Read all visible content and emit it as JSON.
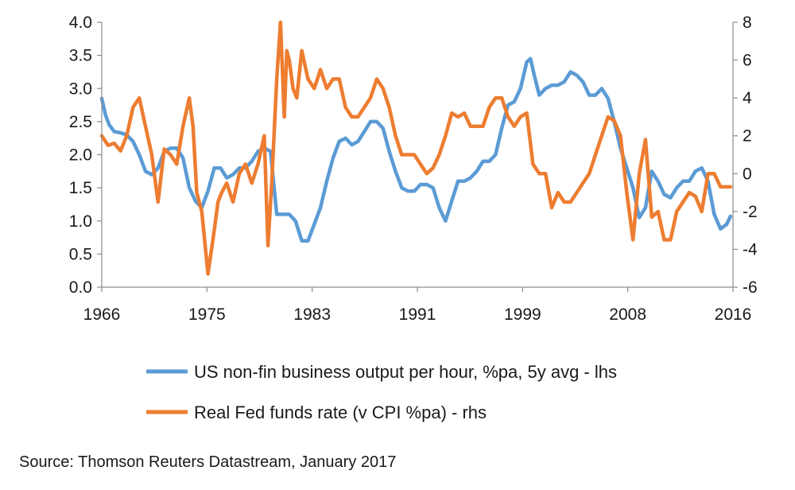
{
  "chart_data": {
    "type": "line",
    "title": "",
    "x_ticks": [
      "1966",
      "1975",
      "1983",
      "1991",
      "1999",
      "2008",
      "2016"
    ],
    "xlim": [
      1966,
      2016.5
    ],
    "y_left": {
      "lim": [
        0,
        4
      ],
      "ticks": [
        "0.0",
        "0.5",
        "1.0",
        "1.5",
        "2.0",
        "2.5",
        "3.0",
        "3.5",
        "4.0"
      ]
    },
    "y_right": {
      "lim": [
        -6,
        8
      ],
      "ticks": [
        "-6",
        "-4",
        "-2",
        "0",
        "2",
        "4",
        "6",
        "8"
      ]
    },
    "grid": false,
    "legend_position": "bottom",
    "series": [
      {
        "name": "US non-fin business output per hour, %pa, 5y avg - lhs",
        "axis": "left",
        "color": "#5b9bd5",
        "x": [
          1966.0,
          1966.3,
          1966.6,
          1967.0,
          1967.5,
          1968.0,
          1968.5,
          1969.0,
          1969.5,
          1970.0,
          1970.5,
          1971.0,
          1971.5,
          1972.0,
          1972.5,
          1973.0,
          1973.5,
          1974.0,
          1974.5,
          1975.0,
          1975.5,
          1976.0,
          1976.5,
          1977.0,
          1977.5,
          1978.0,
          1978.5,
          1979.0,
          1979.5,
          1980.0,
          1980.5,
          1981.0,
          1981.5,
          1982.0,
          1982.5,
          1983.0,
          1983.5,
          1984.0,
          1984.5,
          1985.0,
          1985.5,
          1986.0,
          1986.5,
          1987.0,
          1987.5,
          1988.0,
          1988.5,
          1989.0,
          1989.5,
          1990.0,
          1990.5,
          1991.0,
          1991.5,
          1992.0,
          1992.5,
          1993.0,
          1993.5,
          1994.0,
          1994.5,
          1995.0,
          1995.5,
          1996.0,
          1996.5,
          1997.0,
          1997.5,
          1998.0,
          1998.5,
          1999.0,
          1999.5,
          2000.0,
          2000.3,
          2000.6,
          2001.0,
          2001.5,
          2002.0,
          2002.5,
          2003.0,
          2003.5,
          2004.0,
          2004.5,
          2005.0,
          2005.5,
          2006.0,
          2006.5,
          2007.0,
          2007.5,
          2008.0,
          2008.5,
          2009.0,
          2009.5,
          2010.0,
          2010.5,
          2011.0,
          2011.5,
          2012.0,
          2012.5,
          2013.0,
          2013.5,
          2014.0,
          2014.5,
          2015.0,
          2015.5,
          2016.0,
          2016.3
        ],
        "values": [
          2.85,
          2.6,
          2.45,
          2.35,
          2.33,
          2.3,
          2.2,
          2.0,
          1.75,
          1.7,
          1.8,
          2.05,
          2.1,
          2.1,
          1.95,
          1.5,
          1.3,
          1.2,
          1.45,
          1.8,
          1.8,
          1.65,
          1.7,
          1.8,
          1.8,
          1.9,
          2.05,
          2.1,
          2.05,
          1.1,
          1.1,
          1.1,
          1.0,
          0.7,
          0.7,
          0.95,
          1.2,
          1.6,
          1.95,
          2.2,
          2.25,
          2.15,
          2.2,
          2.35,
          2.5,
          2.5,
          2.4,
          2.05,
          1.75,
          1.5,
          1.45,
          1.45,
          1.55,
          1.55,
          1.5,
          1.2,
          1.0,
          1.3,
          1.6,
          1.6,
          1.65,
          1.75,
          1.9,
          1.9,
          2.0,
          2.4,
          2.75,
          2.8,
          3.0,
          3.4,
          3.45,
          3.2,
          2.9,
          3.0,
          3.05,
          3.05,
          3.1,
          3.25,
          3.2,
          3.1,
          2.9,
          2.9,
          3.0,
          2.85,
          2.5,
          2.1,
          1.8,
          1.5,
          1.05,
          1.2,
          1.75,
          1.6,
          1.4,
          1.35,
          1.5,
          1.6,
          1.6,
          1.75,
          1.8,
          1.6,
          1.1,
          0.88,
          0.95,
          1.07
        ]
      },
      {
        "name": "Real Fed funds rate (v CPI %pa) - rhs",
        "axis": "right",
        "color": "#ed7d31",
        "x": [
          1966.0,
          1966.5,
          1967.0,
          1967.5,
          1968.0,
          1968.5,
          1969.0,
          1969.5,
          1970.0,
          1970.5,
          1971.0,
          1971.5,
          1972.0,
          1972.5,
          1973.0,
          1973.3,
          1973.6,
          1974.0,
          1974.5,
          1975.0,
          1975.3,
          1975.6,
          1976.0,
          1976.5,
          1977.0,
          1977.5,
          1978.0,
          1978.5,
          1979.0,
          1979.3,
          1979.6,
          1980.0,
          1980.3,
          1980.6,
          1980.8,
          1981.0,
          1981.3,
          1981.6,
          1982.0,
          1982.5,
          1983.0,
          1983.5,
          1984.0,
          1984.5,
          1985.0,
          1985.5,
          1986.0,
          1986.5,
          1987.0,
          1987.5,
          1988.0,
          1988.5,
          1989.0,
          1989.5,
          1990.0,
          1990.5,
          1991.0,
          1991.5,
          1992.0,
          1992.5,
          1993.0,
          1993.5,
          1994.0,
          1994.5,
          1995.0,
          1995.5,
          1996.0,
          1996.5,
          1997.0,
          1997.5,
          1998.0,
          1998.5,
          1999.0,
          1999.5,
          2000.0,
          2000.5,
          2001.0,
          2001.5,
          2002.0,
          2002.5,
          2003.0,
          2003.5,
          2004.0,
          2004.5,
          2005.0,
          2005.5,
          2006.0,
          2006.5,
          2007.0,
          2007.5,
          2008.0,
          2008.5,
          2009.0,
          2009.5,
          2010.0,
          2010.5,
          2011.0,
          2011.5,
          2012.0,
          2012.5,
          2013.0,
          2013.5,
          2014.0,
          2014.5,
          2015.0,
          2015.5,
          2016.0,
          2016.3
        ],
        "values": [
          2.0,
          1.5,
          1.6,
          1.2,
          2.0,
          3.5,
          4.0,
          2.5,
          1.0,
          -1.5,
          1.3,
          1.0,
          0.5,
          2.5,
          4.0,
          2.5,
          -1.0,
          -2.0,
          -5.3,
          -3.0,
          -1.5,
          -1.0,
          -0.5,
          -1.5,
          0.0,
          0.5,
          -0.5,
          0.5,
          2.0,
          -3.8,
          -0.5,
          5.0,
          8.0,
          3.0,
          6.5,
          6.0,
          4.5,
          4.0,
          6.5,
          5.0,
          4.5,
          5.5,
          4.5,
          5.0,
          5.0,
          3.5,
          3.0,
          3.0,
          3.5,
          4.0,
          5.0,
          4.5,
          3.5,
          2.0,
          1.0,
          1.0,
          1.0,
          0.5,
          0.0,
          0.3,
          1.0,
          2.0,
          3.2,
          3.0,
          3.2,
          2.5,
          2.5,
          2.5,
          3.5,
          4.0,
          4.0,
          3.0,
          2.5,
          3.0,
          3.2,
          0.5,
          0.0,
          0.0,
          -1.8,
          -1.0,
          -1.5,
          -1.5,
          -1.0,
          -0.5,
          0.0,
          1.0,
          2.0,
          3.0,
          2.8,
          2.0,
          -1.0,
          -3.5,
          0.0,
          1.8,
          -2.3,
          -2.0,
          -3.5,
          -3.5,
          -2.0,
          -1.5,
          -1.0,
          -1.2,
          -2.0,
          0.0,
          0.0,
          -0.7,
          -0.7,
          -0.7
        ]
      }
    ],
    "source": "Source: Thomson Reuters Datastream, January 2017"
  }
}
